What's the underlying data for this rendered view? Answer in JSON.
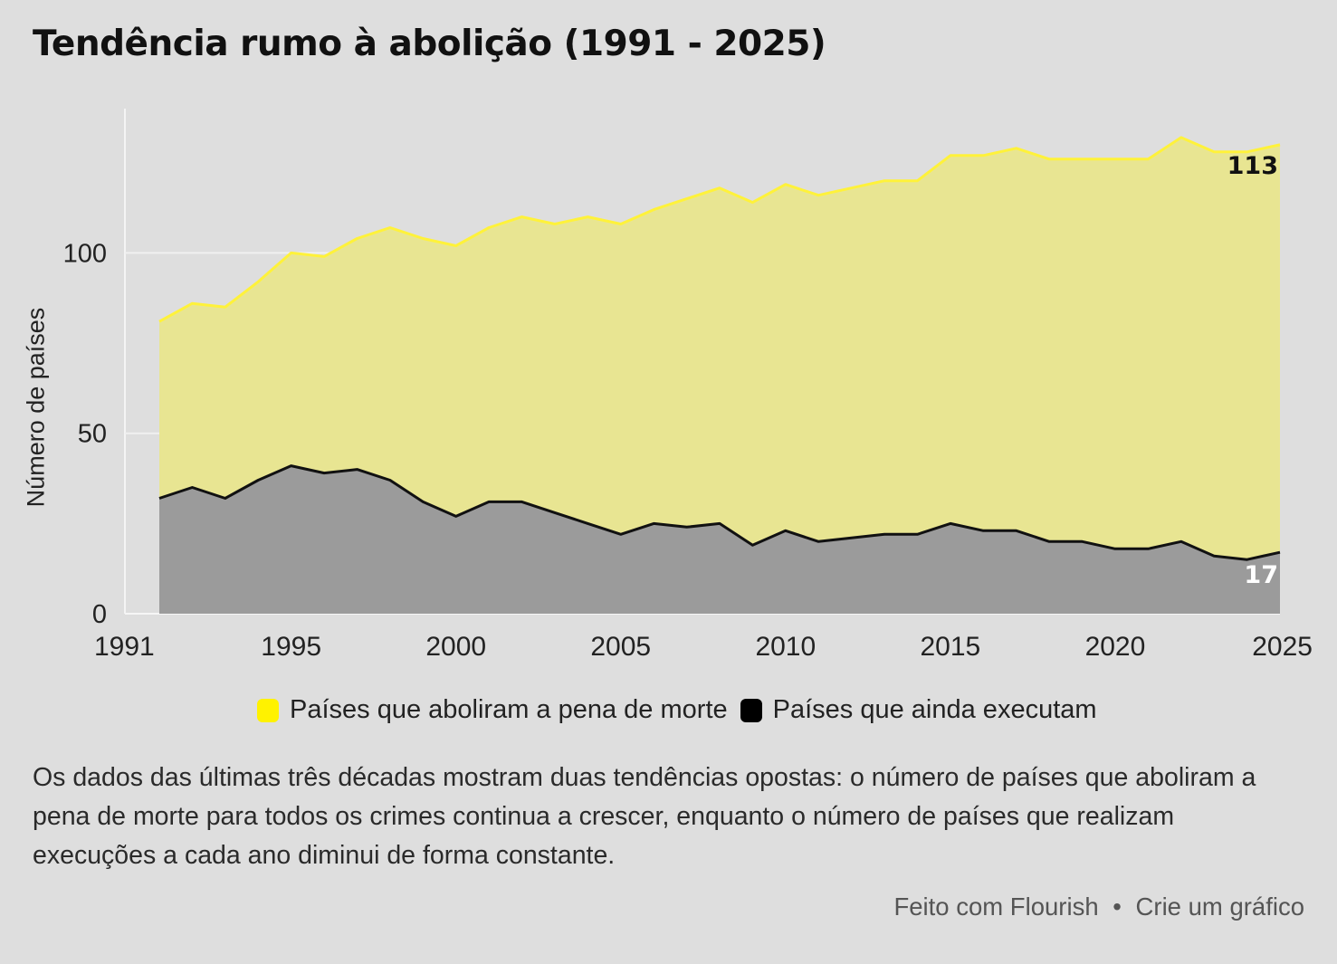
{
  "title": "Tendência rumo à abolição (1991 - 2025)",
  "colors": {
    "abolished_fill": "#e8e592",
    "abolished_line": "#fff23a",
    "executing_fill": "#9b9b9b",
    "executing_line": "#111111",
    "legend_yellow": "#fff200",
    "legend_black": "#000000",
    "background": "#dedede"
  },
  "legend": {
    "abolished": "Países que aboliram a pena de morte",
    "executing": "Países que ainda executam"
  },
  "caption": "Os dados das últimas três décadas mostram duas tendências opostas: o número de países que aboliram a pena de morte para todos os crimes continua a crescer, enquanto o número de países que realizam execuções a cada ano diminui de forma constante.",
  "footer": {
    "made_with": "Feito com Flourish",
    "separator": "•",
    "create": "Crie um gráfico"
  },
  "chart_data": {
    "type": "area",
    "stacked": true,
    "ylabel": "Número de países",
    "xlabel": "",
    "ylim": [
      0,
      140
    ],
    "xlim": [
      1991,
      2025
    ],
    "yticks": [
      0,
      50,
      100
    ],
    "xticks": [
      1991,
      1995,
      2000,
      2005,
      2010,
      2015,
      2020,
      2025
    ],
    "grid": "horizontal",
    "legend_position": "bottom",
    "x": [
      1991,
      1992,
      1993,
      1994,
      1995,
      1996,
      1997,
      1998,
      1999,
      2000,
      2001,
      2002,
      2003,
      2004,
      2005,
      2006,
      2007,
      2008,
      2009,
      2010,
      2011,
      2012,
      2013,
      2014,
      2015,
      2016,
      2017,
      2018,
      2019,
      2020,
      2021,
      2022,
      2023,
      2024,
      2025
    ],
    "series": [
      {
        "name": "Países que ainda executam",
        "key": "executing",
        "values": [
          32,
          35,
          32,
          37,
          41,
          39,
          40,
          37,
          31,
          27,
          31,
          31,
          28,
          25,
          22,
          25,
          24,
          25,
          19,
          23,
          20,
          21,
          22,
          22,
          25,
          23,
          23,
          20,
          20,
          18,
          18,
          20,
          16,
          15,
          17
        ],
        "end_label": "17"
      },
      {
        "name": "Países que aboliram a pena de morte",
        "key": "abolished",
        "values": [
          49,
          51,
          53,
          55,
          59,
          60,
          64,
          70,
          73,
          75,
          76,
          79,
          80,
          85,
          86,
          87,
          91,
          93,
          95,
          96,
          96,
          97,
          98,
          98,
          102,
          104,
          106,
          106,
          106,
          108,
          108,
          112,
          112,
          113,
          113
        ],
        "end_label": "113"
      }
    ]
  }
}
